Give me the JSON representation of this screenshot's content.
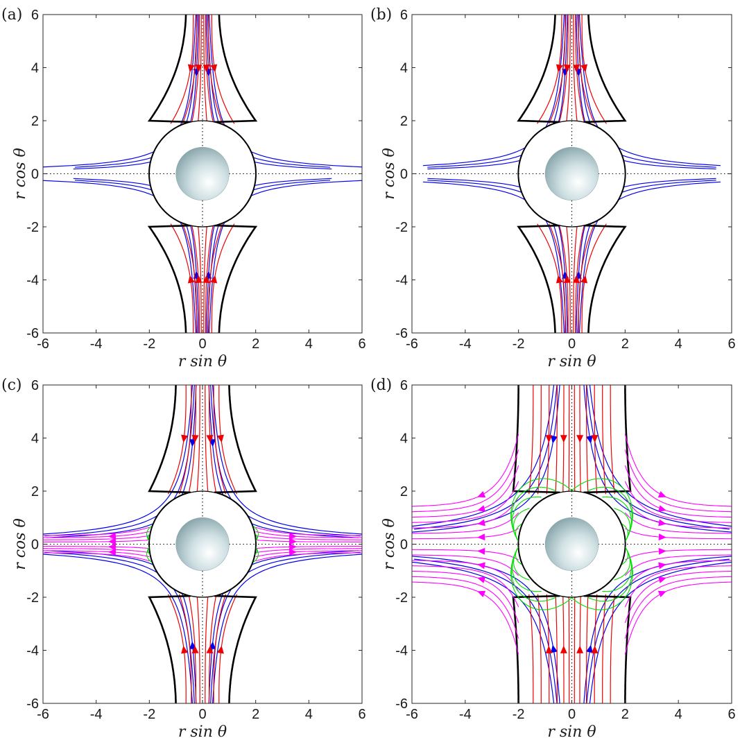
{
  "figure": {
    "panel_labels": [
      "(a)",
      "(b)",
      "(c)",
      "(d)"
    ]
  },
  "colors": {
    "outer_streamlines": "#0000ee",
    "inner_streamlines": "#ee0000",
    "separatrix": "#000000",
    "magenta_streamlines": "#ff00ff",
    "green_streamlines": "#00dd00",
    "sphere": "#a9c4c9"
  },
  "chart_data": [
    {
      "type": "line",
      "panel": "(a)",
      "xlabel": "r sin θ",
      "ylabel": "r cos θ",
      "xlim": [
        -6,
        6
      ],
      "ylim": [
        -6,
        6
      ],
      "xticks": [
        -6,
        -4,
        -2,
        0,
        2,
        4,
        6
      ],
      "yticks": [
        -6,
        -4,
        -2,
        0,
        2,
        4,
        6
      ],
      "inner_circle_radius": 2,
      "sphere_radius": 1,
      "separatrix_waist": 2.0,
      "separatrix_far": 0.62,
      "inner_offsets": [
        0.05,
        0.12,
        0.22,
        0.35
      ],
      "outer_offsets": [
        0.2,
        0.5,
        0.85
      ],
      "has_magenta": false,
      "has_green": false
    },
    {
      "type": "line",
      "panel": "(b)",
      "xlabel": "r sin θ",
      "ylabel": "r cos θ",
      "xlim": [
        -6,
        6
      ],
      "ylim": [
        -6,
        6
      ],
      "xticks": [
        -6,
        -4,
        -2,
        0,
        2,
        4,
        6
      ],
      "yticks": [
        -6,
        -4,
        -2,
        0,
        2,
        4,
        6
      ],
      "inner_circle_radius": 2,
      "sphere_radius": 1,
      "separatrix_waist": 2.0,
      "separatrix_far": 0.62,
      "inner_offsets": [
        0.06,
        0.14,
        0.25,
        0.38
      ],
      "outer_offsets": [
        0.3,
        0.65,
        1.05
      ],
      "has_magenta": false,
      "has_green": false
    },
    {
      "type": "line",
      "panel": "(c)",
      "xlabel": "r sin θ",
      "ylabel": "r cos θ",
      "xlim": [
        -6,
        6
      ],
      "ylim": [
        -6,
        6
      ],
      "xticks": [
        -6,
        -4,
        -2,
        0,
        2,
        4,
        6
      ],
      "yticks": [
        -6,
        -4,
        -2,
        0,
        2,
        4,
        6
      ],
      "inner_circle_radius": 2,
      "sphere_radius": 1,
      "separatrix_waist": 2.0,
      "separatrix_far": 1.0,
      "inner_offsets": [
        0.1,
        0.25,
        0.42,
        0.62
      ],
      "outer_offsets": [
        0.35,
        0.75,
        1.2
      ],
      "has_magenta": true,
      "has_green": true
    },
    {
      "type": "line",
      "panel": "(d)",
      "xlabel": "r sin θ",
      "ylabel": "r cos θ",
      "xlim": [
        -6,
        6
      ],
      "ylim": [
        -6,
        6
      ],
      "xticks": [
        -6,
        -4,
        -2,
        0,
        2,
        4,
        6
      ],
      "yticks": [
        -6,
        -4,
        -2,
        0,
        2,
        4,
        6
      ],
      "inner_circle_radius": 2,
      "sphere_radius": 1,
      "separatrix_waist": 2.2,
      "separatrix_far": 2.0,
      "inner_offsets": [
        0.1,
        0.3,
        0.55,
        0.85,
        1.15,
        1.45
      ],
      "outer_offsets": [
        0.4,
        0.85,
        1.35
      ],
      "has_magenta": true,
      "has_green": true
    }
  ]
}
